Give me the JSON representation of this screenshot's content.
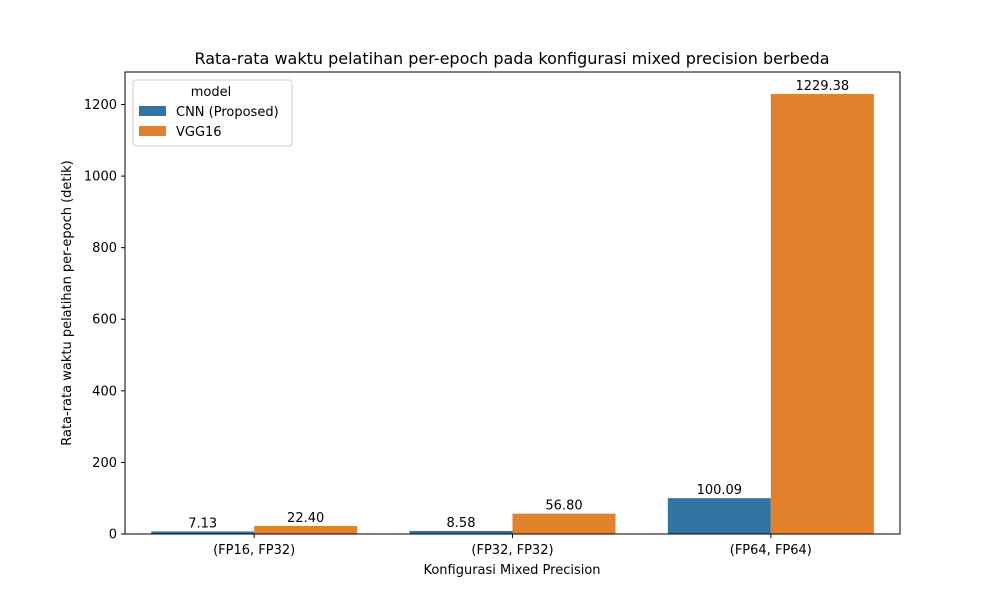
{
  "chart_data": {
    "type": "bar",
    "title": "Rata-rata waktu pelatihan per-epoch pada konfigurasi mixed precision berbeda",
    "xlabel": "Konfigurasi Mixed Precision",
    "ylabel": "Rata-rata waktu pelatihan per-epoch (detik)",
    "categories": [
      "(FP16, FP32)",
      "(FP32, FP32)",
      "(FP64, FP64)"
    ],
    "series": [
      {
        "name": "CNN (Proposed)",
        "values": [
          7.13,
          8.58,
          100.09
        ],
        "labels": [
          "7.13",
          "8.58",
          "100.09"
        ],
        "color": "#3274a1"
      },
      {
        "name": "VGG16",
        "values": [
          22.4,
          56.8,
          1229.38
        ],
        "labels": [
          "22.40",
          "56.80",
          "1229.38"
        ],
        "color": "#e1812c"
      }
    ],
    "ylim": [
      0,
      1290.8
    ],
    "yticks": [
      0,
      200,
      400,
      600,
      800,
      1000,
      1200
    ],
    "legend": {
      "title": "model",
      "placement": "top-left"
    },
    "grid": false
  }
}
